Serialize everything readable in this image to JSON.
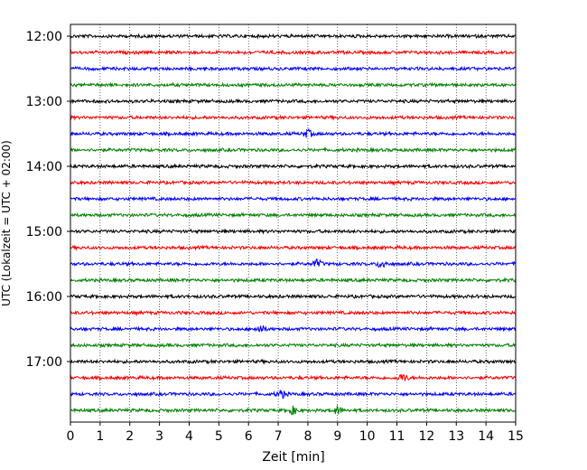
{
  "chart_data": {
    "type": "line",
    "title": "",
    "xlabel": "Zeit  [min]",
    "ylabel": "UTC (Lokalzeit = UTC + 02:00)",
    "xlim": [
      0,
      15
    ],
    "xticks": [
      "0",
      "1",
      "2",
      "3",
      "4",
      "5",
      "6",
      "7",
      "8",
      "9",
      "10",
      "11",
      "12",
      "13",
      "14",
      "15"
    ],
    "ytick_labels": [
      "12:00",
      "13:00",
      "14:00",
      "15:00",
      "16:00",
      "17:00"
    ],
    "grid": "vertical dotted",
    "trace_interval_minutes": 15,
    "trace_colors": [
      "#000000",
      "#ff0000",
      "#0000ff",
      "#008000"
    ],
    "trace_start_times": [
      "12:00",
      "12:15",
      "12:30",
      "12:45",
      "13:00",
      "13:15",
      "13:30",
      "13:45",
      "14:00",
      "14:15",
      "14:30",
      "14:45",
      "15:00",
      "15:15",
      "15:30",
      "15:45",
      "16:00",
      "16:15",
      "16:30",
      "16:45",
      "17:00",
      "17:15",
      "17:30",
      "17:45"
    ],
    "events": [
      {
        "trace": "17:45",
        "minute": 7.5
      },
      {
        "trace": "17:45",
        "minute": 9.0
      },
      {
        "trace": "17:15",
        "minute": 11.2
      },
      {
        "trace": "17:30",
        "minute": 7.1
      },
      {
        "trace": "16:30",
        "minute": 6.4
      },
      {
        "trace": "13:30",
        "minute": 8.0
      },
      {
        "trace": "15:30",
        "minute": 8.3
      },
      {
        "trace": "15:30",
        "minute": 10.5
      }
    ]
  }
}
